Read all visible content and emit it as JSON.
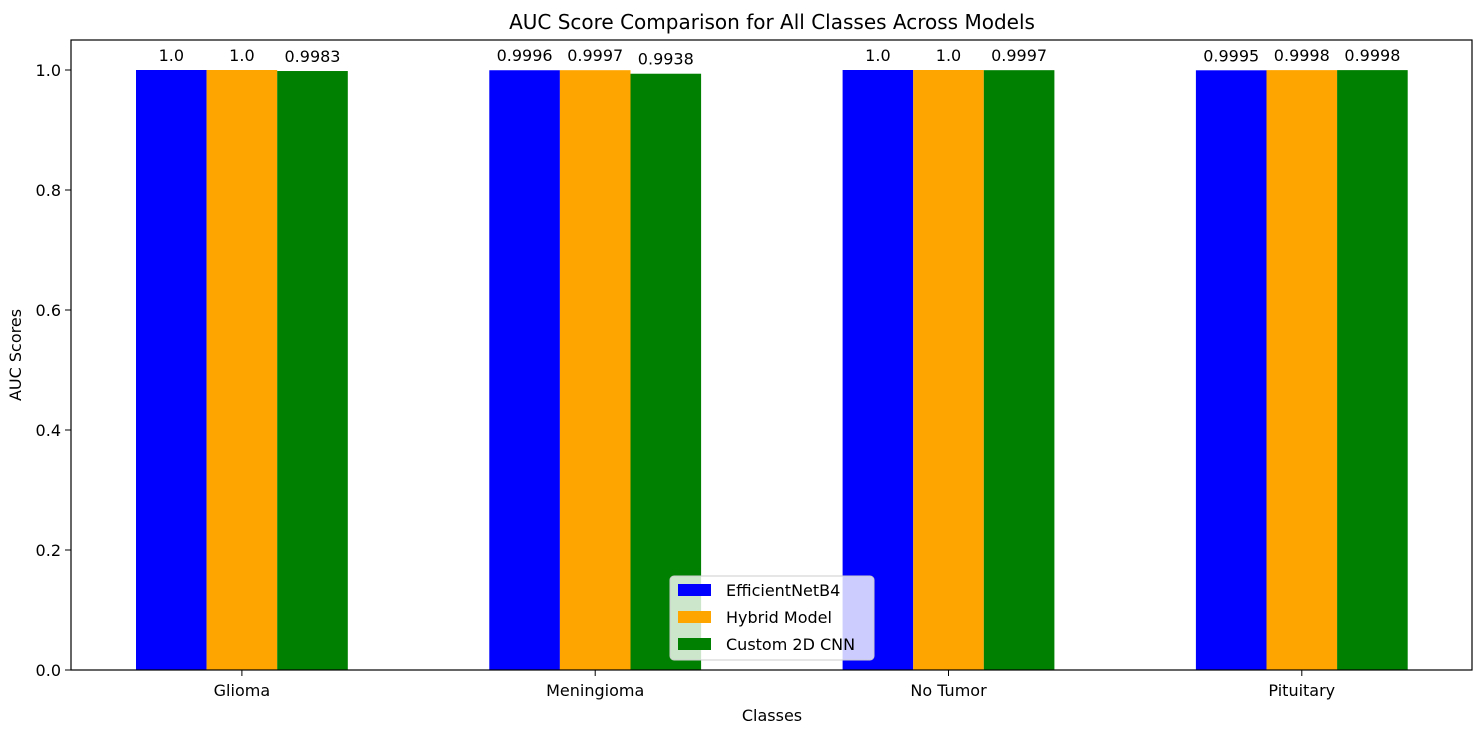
{
  "chart_data": {
    "type": "bar",
    "title": "AUC Score Comparison for All Classes Across Models",
    "xlabel": "Classes",
    "ylabel": "AUC Scores",
    "ylim": [
      0,
      1.05
    ],
    "yticks": [
      0.0,
      0.2,
      0.4,
      0.6,
      0.8,
      1.0
    ],
    "ytick_labels": [
      "0.0",
      "0.2",
      "0.4",
      "0.6",
      "0.8",
      "1.0"
    ],
    "categories": [
      "Glioma",
      "Meningioma",
      "No Tumor",
      "Pituitary"
    ],
    "series": [
      {
        "name": "EfficientNetB4",
        "color": "#0000ff",
        "values": [
          1.0,
          0.9996,
          1.0,
          0.9995
        ],
        "labels": [
          "1.0",
          "0.9996",
          "1.0",
          "0.9995"
        ]
      },
      {
        "name": "Hybrid Model",
        "color": "#ffa500",
        "values": [
          1.0,
          0.9997,
          1.0,
          0.9998
        ],
        "labels": [
          "1.0",
          "0.9997",
          "1.0",
          "0.9998"
        ]
      },
      {
        "name": "Custom 2D CNN",
        "color": "#008000",
        "values": [
          0.9983,
          0.9938,
          0.9997,
          0.9998
        ],
        "labels": [
          "0.9983",
          "0.9938",
          "0.9997",
          "0.9998"
        ]
      }
    ],
    "grid": false,
    "legend_position": "lower center"
  }
}
